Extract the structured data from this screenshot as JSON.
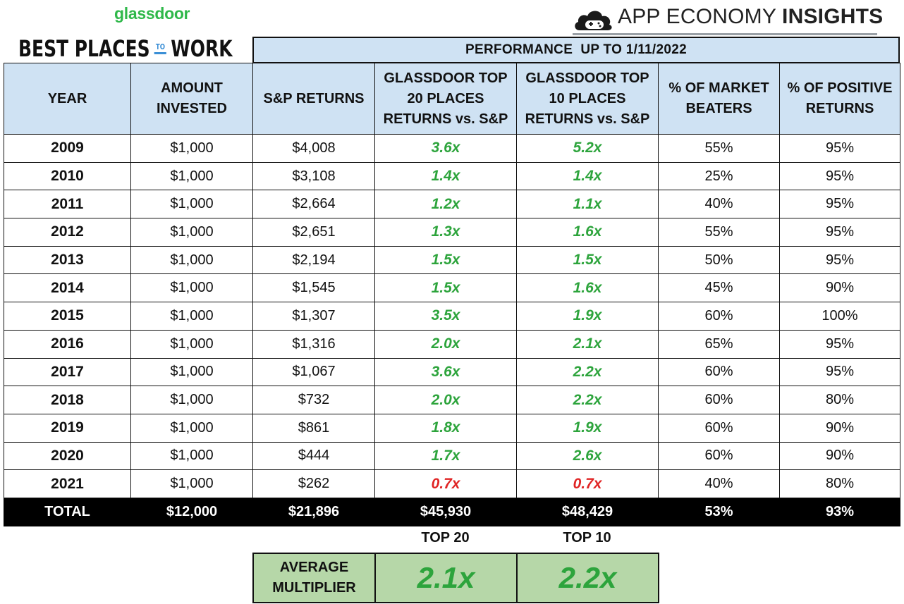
{
  "header": {
    "glassdoor": "glassdoor",
    "bptw_left": "BEST PLACES",
    "bptw_to": "TO",
    "bptw_right": "WORK",
    "aei_regular": "APP ECONOMY",
    "aei_bold": "INSIGHTS"
  },
  "performance_band": "PERFORMANCE  UP TO 1/11/2022",
  "columns": [
    "YEAR",
    "AMOUNT INVESTED",
    "S&P RETURNS",
    "GLASSDOOR TOP 20 PLACES RETURNS vs. S&P",
    "GLASSDOOR TOP 10 PLACES RETURNS vs. S&P",
    "% OF MARKET BEATERS",
    "% OF POSITIVE RETURNS"
  ],
  "rows": [
    {
      "year": "2009",
      "invested": "$1,000",
      "sp": "$4,008",
      "top20": "3.6x",
      "top10": "5.2x",
      "beaters": "55%",
      "positive": "95%"
    },
    {
      "year": "2010",
      "invested": "$1,000",
      "sp": "$3,108",
      "top20": "1.4x",
      "top10": "1.4x",
      "beaters": "25%",
      "positive": "95%"
    },
    {
      "year": "2011",
      "invested": "$1,000",
      "sp": "$2,664",
      "top20": "1.2x",
      "top10": "1.1x",
      "beaters": "40%",
      "positive": "95%"
    },
    {
      "year": "2012",
      "invested": "$1,000",
      "sp": "$2,651",
      "top20": "1.3x",
      "top10": "1.6x",
      "beaters": "55%",
      "positive": "95%"
    },
    {
      "year": "2013",
      "invested": "$1,000",
      "sp": "$2,194",
      "top20": "1.5x",
      "top10": "1.5x",
      "beaters": "50%",
      "positive": "95%"
    },
    {
      "year": "2014",
      "invested": "$1,000",
      "sp": "$1,545",
      "top20": "1.5x",
      "top10": "1.6x",
      "beaters": "45%",
      "positive": "90%"
    },
    {
      "year": "2015",
      "invested": "$1,000",
      "sp": "$1,307",
      "top20": "3.5x",
      "top10": "1.9x",
      "beaters": "60%",
      "positive": "100%"
    },
    {
      "year": "2016",
      "invested": "$1,000",
      "sp": "$1,316",
      "top20": "2.0x",
      "top10": "2.1x",
      "beaters": "65%",
      "positive": "95%"
    },
    {
      "year": "2017",
      "invested": "$1,000",
      "sp": "$1,067",
      "top20": "3.6x",
      "top10": "2.2x",
      "beaters": "60%",
      "positive": "95%"
    },
    {
      "year": "2018",
      "invested": "$1,000",
      "sp": "$732",
      "top20": "2.0x",
      "top10": "2.2x",
      "beaters": "60%",
      "positive": "80%"
    },
    {
      "year": "2019",
      "invested": "$1,000",
      "sp": "$861",
      "top20": "1.8x",
      "top10": "1.9x",
      "beaters": "60%",
      "positive": "90%"
    },
    {
      "year": "2020",
      "invested": "$1,000",
      "sp": "$444",
      "top20": "1.7x",
      "top10": "2.6x",
      "beaters": "60%",
      "positive": "90%"
    },
    {
      "year": "2021",
      "invested": "$1,000",
      "sp": "$262",
      "top20": "0.7x",
      "top10": "0.7x",
      "beaters": "40%",
      "positive": "80%"
    }
  ],
  "total": {
    "label": "TOTAL",
    "invested": "$12,000",
    "sp": "$21,896",
    "top20": "$45,930",
    "top10": "$48,429",
    "beaters": "53%",
    "positive": "93%"
  },
  "average": {
    "top20_label": "TOP 20",
    "top10_label": "TOP 10",
    "label": "AVERAGE MULTIPLIER",
    "top20": "2.1x",
    "top10": "2.2x"
  },
  "colors": {
    "positive": "#2da43c",
    "negative": "#e02424",
    "header_bg": "#cfe2f3",
    "avg_bg": "#b6d7a8"
  }
}
